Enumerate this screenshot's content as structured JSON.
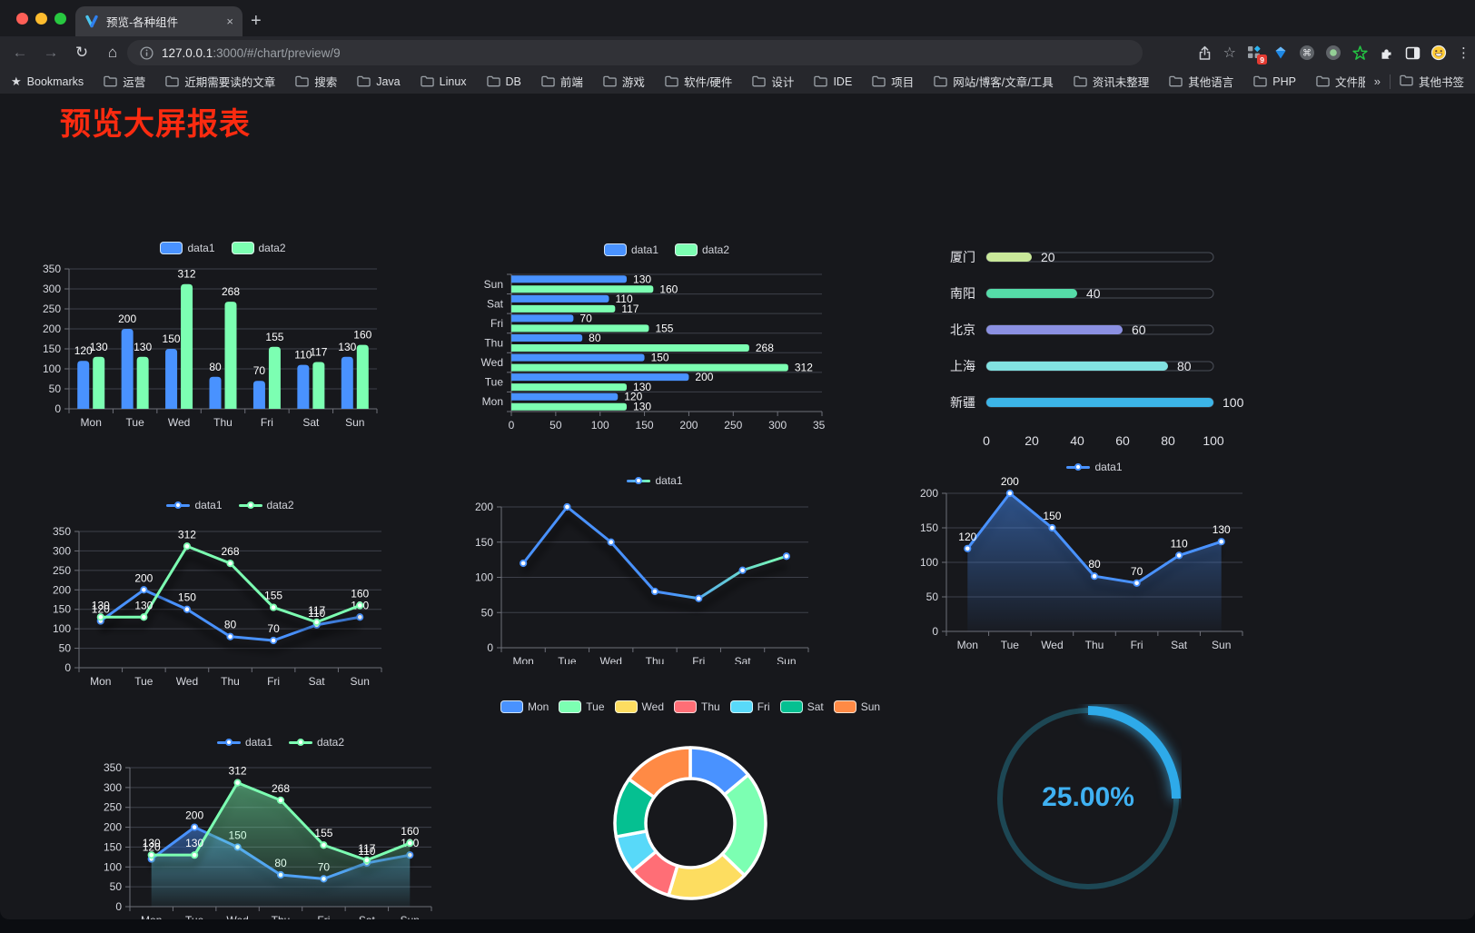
{
  "browser": {
    "tab_title": "预览-各种组件",
    "url": {
      "host": "127.0.0.1",
      "rest": ":3000/#/chart/preview/9"
    },
    "extension_badge": "9",
    "glyphs": {
      "close_tab": "×",
      "new_tab": "+",
      "back": "←",
      "forward": "→",
      "reload": "↻",
      "home": "⌂",
      "menu": "⋮",
      "star": "☆",
      "bookmarks_star": "★",
      "command": "⌘"
    },
    "bookmarks_bar": {
      "root_label": "Bookmarks",
      "folders": [
        "运营",
        "近期需要读的文章",
        "搜索",
        "Java",
        "Linux",
        "DB",
        "前端",
        "游戏",
        "软件/硬件",
        "设计",
        "IDE",
        "项目",
        "网站/博客/文章/工具",
        "资讯未整理",
        "其他语言",
        "PHP",
        "文件服务器"
      ],
      "overflow_glyph": "»",
      "other_label": "其他书签"
    }
  },
  "page": {
    "title": "预览大屏报表"
  },
  "colors": {
    "series_blue": "#4992ff",
    "series_green": "#7cffb2",
    "axis": "#6E7079",
    "grid": "#3E404A",
    "tick_text": "#D7D9E0",
    "value_label": "#ffffff",
    "title_red": "#FB2B10"
  },
  "chart_data": [
    {
      "id": "bar_v",
      "type": "bar",
      "categories": [
        "Mon",
        "Tue",
        "Wed",
        "Thu",
        "Fri",
        "Sat",
        "Sun"
      ],
      "series": [
        {
          "name": "data1",
          "color": "#4992ff",
          "values": [
            120,
            200,
            150,
            80,
            70,
            110,
            130
          ]
        },
        {
          "name": "data2",
          "color": "#7cffb2",
          "values": [
            130,
            130,
            312,
            268,
            155,
            117,
            160
          ]
        }
      ],
      "ylim": [
        0,
        350
      ],
      "ystep": 50,
      "value_labels": true,
      "grid": true,
      "legend": {
        "position": "top",
        "icon": "rect"
      }
    },
    {
      "id": "bar_h",
      "type": "bar-horizontal",
      "categories": [
        "Mon",
        "Tue",
        "Wed",
        "Thu",
        "Fri",
        "Sat",
        "Sun"
      ],
      "axis_inverse_display": [
        "Sun",
        "Sat",
        "Fri",
        "Thu",
        "Wed",
        "Tue",
        "Mon"
      ],
      "series": [
        {
          "name": "data1",
          "color": "#4992ff",
          "values": [
            120,
            200,
            150,
            80,
            70,
            110,
            130
          ]
        },
        {
          "name": "data2",
          "color": "#7cffb2",
          "values": [
            130,
            130,
            312,
            268,
            155,
            117,
            160
          ]
        }
      ],
      "xlim": [
        0,
        350
      ],
      "xstep": 50,
      "value_labels": true,
      "grid": true,
      "legend": {
        "position": "top",
        "icon": "rect"
      }
    },
    {
      "id": "progress",
      "type": "capsule-progress",
      "xlim": [
        0,
        100
      ],
      "xticks": [
        0,
        20,
        40,
        60,
        80,
        100
      ],
      "rows": [
        {
          "label": "厦门",
          "value": 20,
          "color": "#C9E89A"
        },
        {
          "label": "南阳",
          "value": 40,
          "color": "#55DCA8"
        },
        {
          "label": "北京",
          "value": 60,
          "color": "#8B90E2"
        },
        {
          "label": "上海",
          "value": 80,
          "color": "#82E2E1"
        },
        {
          "label": "新疆",
          "value": 100,
          "color": "#3CB5E8"
        }
      ]
    },
    {
      "id": "line2",
      "type": "line",
      "categories": [
        "Mon",
        "Tue",
        "Wed",
        "Thu",
        "Fri",
        "Sat",
        "Sun"
      ],
      "series": [
        {
          "name": "data1",
          "color": "#4992ff",
          "values": [
            120,
            200,
            150,
            80,
            70,
            110,
            130
          ]
        },
        {
          "name": "data2",
          "color": "#7cffb2",
          "values": [
            130,
            130,
            312,
            268,
            155,
            117,
            160
          ]
        }
      ],
      "ylim": [
        0,
        350
      ],
      "ystep": 50,
      "value_labels": true,
      "shadow": true,
      "legend": {
        "position": "top",
        "icon": "line"
      }
    },
    {
      "id": "lineGrad",
      "type": "line",
      "categories": [
        "Mon",
        "Tue",
        "Wed",
        "Thu",
        "Fri",
        "Sat",
        "Sun"
      ],
      "series": [
        {
          "name": "data1",
          "gradient": [
            "#4992ff",
            "#7cffb2"
          ],
          "color": "#4992ff",
          "values": [
            120,
            200,
            150,
            80,
            70,
            110,
            130
          ]
        }
      ],
      "ylim": [
        0,
        200
      ],
      "ystep": 50,
      "value_labels": false,
      "shadow": true,
      "legend": {
        "position": "top",
        "icon": "line-grad"
      }
    },
    {
      "id": "area1",
      "type": "area",
      "categories": [
        "Mon",
        "Tue",
        "Wed",
        "Thu",
        "Fri",
        "Sat",
        "Sun"
      ],
      "series": [
        {
          "name": "data1",
          "color": "#4992ff",
          "area": true,
          "values": [
            120,
            200,
            150,
            80,
            70,
            110,
            130
          ]
        }
      ],
      "ylim": [
        0,
        200
      ],
      "ystep": 50,
      "value_labels": true,
      "shadow": true,
      "legend": {
        "position": "top",
        "icon": "line"
      }
    },
    {
      "id": "area2",
      "type": "area",
      "categories": [
        "Mon",
        "Tue",
        "Wed",
        "Thu",
        "Fri",
        "Sat",
        "Sun"
      ],
      "series": [
        {
          "name": "data1",
          "color": "#4992ff",
          "area": true,
          "values": [
            120,
            200,
            150,
            80,
            70,
            110,
            130
          ]
        },
        {
          "name": "data2",
          "color": "#7cffb2",
          "area": true,
          "values": [
            130,
            130,
            312,
            268,
            155,
            117,
            160
          ]
        }
      ],
      "ylim": [
        0,
        350
      ],
      "ystep": 50,
      "value_labels": true,
      "shadow": true,
      "legend": {
        "position": "top",
        "icon": "line"
      }
    },
    {
      "id": "pie",
      "type": "pie",
      "categories": [
        "Mon",
        "Tue",
        "Wed",
        "Thu",
        "Fri",
        "Sat",
        "Sun"
      ],
      "values": [
        120,
        200,
        150,
        80,
        70,
        110,
        130
      ],
      "colors": [
        "#4992ff",
        "#7cffb2",
        "#fddd60",
        "#ff6e76",
        "#58d9f9",
        "#05c091",
        "#ff8a45"
      ],
      "donut": true,
      "border_color": "#ffffff",
      "legend": {
        "position": "top",
        "icon": "rect"
      }
    },
    {
      "id": "gauge",
      "type": "gauge",
      "value": 25,
      "max": 100,
      "label": "25.00%",
      "color": "#2EAAE9",
      "track_color": "#1D4754",
      "text_color": "#3FB1F2"
    }
  ]
}
